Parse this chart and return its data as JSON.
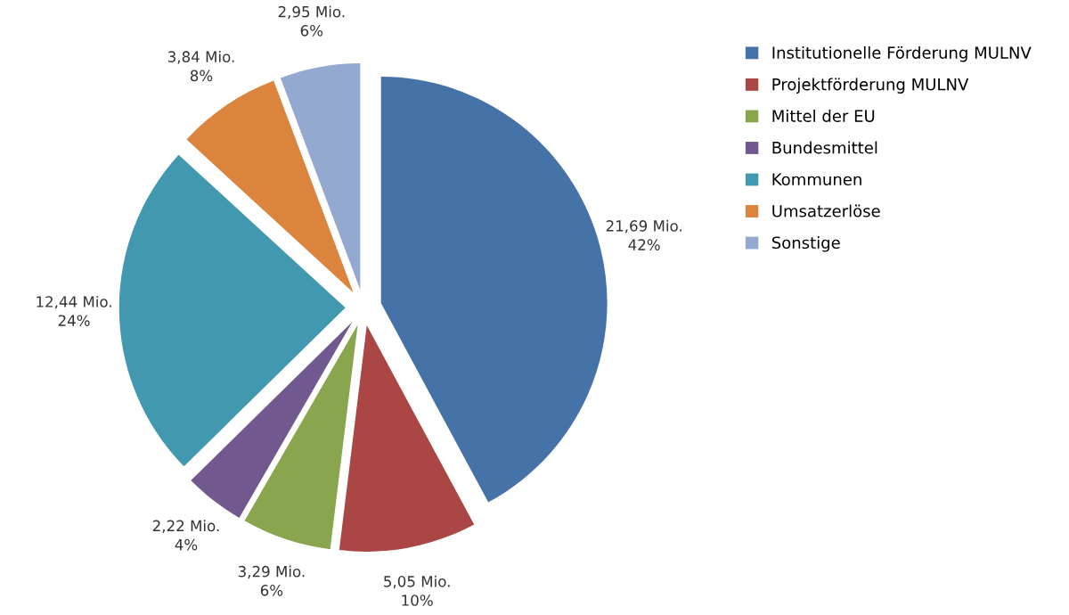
{
  "chart_data": {
    "type": "pie",
    "categories": [
      "Institutionelle Förderung MULNV",
      "Projektförderung MULNV",
      "Mittel der EU",
      "Bundesmittel",
      "Kommunen",
      "Umsatzerlöse",
      "Sonstige"
    ],
    "values": [
      21.69,
      5.05,
      3.29,
      2.22,
      12.44,
      3.84,
      2.95
    ],
    "colors": [
      "#4572a7",
      "#aa4643",
      "#89a54e",
      "#71588f",
      "#4198af",
      "#db843d",
      "#93a9cf"
    ],
    "value_labels": [
      "21,69 Mio.\n42%",
      "5,05 Mio.\n10%",
      "3,29 Mio.\n6%",
      "2,22 Mio.\n4%",
      "12,44 Mio.\n24%",
      "3,84 Mio.\n8%",
      "2,95 Mio.\n6%"
    ],
    "legend": "right"
  }
}
